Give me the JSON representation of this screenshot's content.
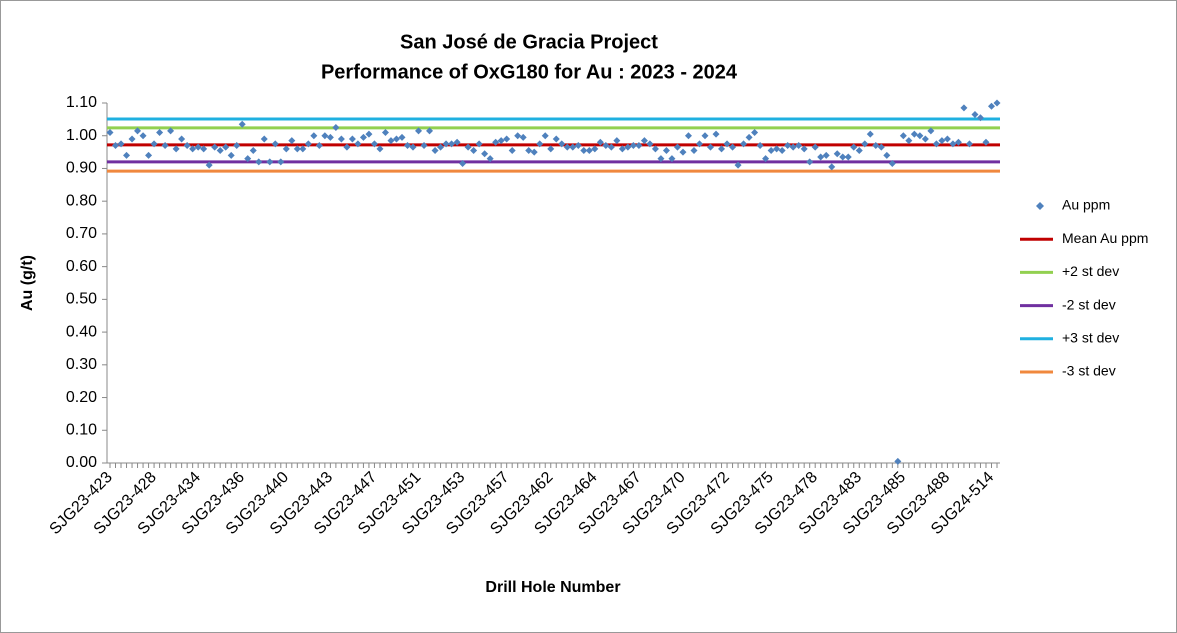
{
  "chart_data": {
    "type": "scatter",
    "title": "San José de Gracia Project",
    "subtitle": "Performance of OxG180 for Au : 2023 - 2024",
    "x_label": "Drill Hole Number",
    "y_label": "Au (g/t)",
    "categories": [
      "SJG23-423",
      null,
      null,
      null,
      null,
      null,
      null,
      null,
      "SJG23-428",
      null,
      null,
      null,
      null,
      null,
      null,
      null,
      "SJG23-434",
      null,
      null,
      null,
      null,
      null,
      null,
      null,
      "SJG23-436",
      null,
      null,
      null,
      null,
      null,
      null,
      null,
      "SJG23-440",
      null,
      null,
      null,
      null,
      null,
      null,
      null,
      "SJG23-443",
      null,
      null,
      null,
      null,
      null,
      null,
      null,
      "SJG23-447",
      null,
      null,
      null,
      null,
      null,
      null,
      null,
      "SJG23-451",
      null,
      null,
      null,
      null,
      null,
      null,
      null,
      "SJG23-453",
      null,
      null,
      null,
      null,
      null,
      null,
      null,
      "SJG23-457",
      null,
      null,
      null,
      null,
      null,
      null,
      null,
      "SJG23-462",
      null,
      null,
      null,
      null,
      null,
      null,
      null,
      "SJG23-464",
      null,
      null,
      null,
      null,
      null,
      null,
      null,
      "SJG23-467",
      null,
      null,
      null,
      null,
      null,
      null,
      null,
      "SJG23-470",
      null,
      null,
      null,
      null,
      null,
      null,
      null,
      "SJG23-472",
      null,
      null,
      null,
      null,
      null,
      null,
      null,
      "SJG23-475",
      null,
      null,
      null,
      null,
      null,
      null,
      null,
      "SJG23-478",
      null,
      null,
      null,
      null,
      null,
      null,
      null,
      "SJG23-483",
      null,
      null,
      null,
      null,
      null,
      null,
      null,
      "SJG23-485",
      null,
      null,
      null,
      null,
      null,
      null,
      null,
      "SJG23-488",
      null,
      null,
      null,
      null,
      null,
      null,
      null,
      "SJG24-514",
      null
    ],
    "series": [
      {
        "name": "Au ppm",
        "color": "#4f81bd",
        "values": [
          1.01,
          0.97,
          0.975,
          0.94,
          0.99,
          1.015,
          1.0,
          0.94,
          0.975,
          1.01,
          0.97,
          1.015,
          0.96,
          0.99,
          0.97,
          0.96,
          0.965,
          0.96,
          0.91,
          0.965,
          0.955,
          0.965,
          0.94,
          0.97,
          1.035,
          0.93,
          0.955,
          0.92,
          0.99,
          0.92,
          0.975,
          0.92,
          0.96,
          0.985,
          0.96,
          0.96,
          0.975,
          1.0,
          0.97,
          1.0,
          0.995,
          1.025,
          0.99,
          0.965,
          0.99,
          0.975,
          0.995,
          1.005,
          0.975,
          0.96,
          1.01,
          0.985,
          0.99,
          0.995,
          0.97,
          0.965,
          1.015,
          0.97,
          1.015,
          0.955,
          0.965,
          0.975,
          0.975,
          0.98,
          0.915,
          0.965,
          0.955,
          0.975,
          0.945,
          0.93,
          0.98,
          0.985,
          0.99,
          0.955,
          1.0,
          0.995,
          0.955,
          0.95,
          0.975,
          1.0,
          0.96,
          0.99,
          0.975,
          0.965,
          0.965,
          0.97,
          0.955,
          0.955,
          0.96,
          0.98,
          0.97,
          0.965,
          0.985,
          0.96,
          0.965,
          0.97,
          0.97,
          0.985,
          0.975,
          0.96,
          0.93,
          0.955,
          0.93,
          0.965,
          0.95,
          1.0,
          0.955,
          0.975,
          1.0,
          0.965,
          1.005,
          0.96,
          0.975,
          0.965,
          0.91,
          0.975,
          0.995,
          1.01,
          0.97,
          0.93,
          0.955,
          0.96,
          0.955,
          0.97,
          0.965,
          0.97,
          0.96,
          0.92,
          0.965,
          0.935,
          0.94,
          0.905,
          0.945,
          0.935,
          0.935,
          0.965,
          0.955,
          0.975,
          1.005,
          0.97,
          0.965,
          0.94,
          0.915,
          0.005,
          1.0,
          0.985,
          1.005,
          1.0,
          0.99,
          1.015,
          0.975,
          0.985,
          0.99,
          0.975,
          0.98,
          1.085,
          0.975,
          1.065,
          1.055,
          0.98,
          1.09,
          1.1
        ]
      }
    ],
    "reference_lines": [
      {
        "name": "Mean Au ppm",
        "color": "#c00000",
        "value": 0.972
      },
      {
        "name": "+2 st dev",
        "color": "#92d050",
        "value": 1.024
      },
      {
        "name": "-2 st dev",
        "color": "#7030a0",
        "value": 0.92
      },
      {
        "name": "+3 st dev",
        "color": "#1fb0e0",
        "value": 1.051
      },
      {
        "name": "-3 st dev",
        "color": "#f0883e",
        "value": 0.892
      }
    ],
    "ylim": [
      0,
      1.1
    ],
    "yticks": [
      {
        "value": 0,
        "label": "0.00"
      },
      {
        "value": 0.1,
        "label": "0.10"
      },
      {
        "value": 0.2,
        "label": "0.20"
      },
      {
        "value": 0.3,
        "label": "0.30"
      },
      {
        "value": 0.4,
        "label": "0.40"
      },
      {
        "value": 0.5,
        "label": "0.50"
      },
      {
        "value": 0.6,
        "label": "0.60"
      },
      {
        "value": 0.7,
        "label": "0.70"
      },
      {
        "value": 0.8,
        "label": "0.80"
      },
      {
        "value": 0.9,
        "label": "0.90"
      },
      {
        "value": 1,
        "label": "1.00"
      },
      {
        "value": 1.1,
        "label": "1.10"
      }
    ],
    "grid": false,
    "legend": "right"
  }
}
